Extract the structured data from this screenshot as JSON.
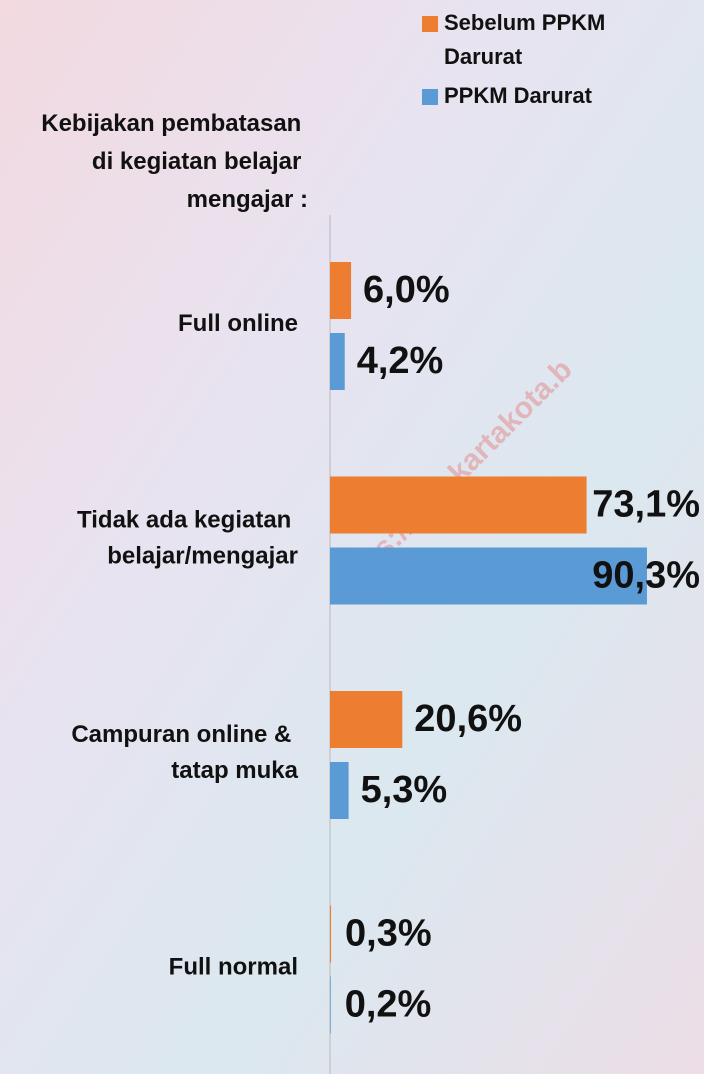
{
  "chart_data": {
    "type": "bar",
    "orientation": "horizontal",
    "title": "Kebijakan pembatasan di kegiatan belajar mengajar :",
    "watermark": "https://surakartakota.b",
    "categories": [
      "Full online",
      "Tidak ada kegiatan belajar/mengajar",
      "Campuran online & tatap muka",
      "Full normal"
    ],
    "series": [
      {
        "name": "Sebelum PPKM Darurat",
        "color": "#ed7d31",
        "values": [
          6.0,
          73.1,
          20.6,
          0.3
        ],
        "value_labels": [
          "6,0%",
          "73,1%",
          "20,6%",
          "0,3%"
        ]
      },
      {
        "name": "PPKM Darurat",
        "color": "#5b9bd5",
        "values": [
          4.2,
          90.3,
          5.3,
          0.2
        ],
        "value_labels": [
          "4,2%",
          "90,3%",
          "5,3%",
          "0,2%"
        ]
      }
    ],
    "xlim": [
      0,
      100
    ],
    "legend": "top-right"
  }
}
